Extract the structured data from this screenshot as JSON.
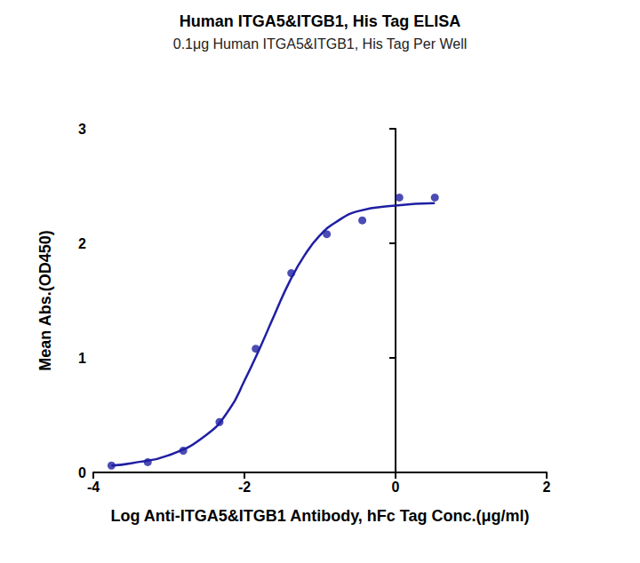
{
  "chart_data": {
    "type": "scatter",
    "title": "Human ITGA5&ITGB1, His Tag ELISA",
    "subtitle": "0.1μg Human ITGA5&ITGB1, His Tag Per Well",
    "x_label": "Log Anti-ITGA5&ITGB1 Antibody, hFc Tag Conc.(μg/ml)",
    "y_label": "Mean Abs.(OD450)",
    "xlim": [
      -4,
      2
    ],
    "xticks": [
      -4,
      -2,
      0,
      2
    ],
    "ylim": [
      0,
      3
    ],
    "yticks": [
      0,
      1,
      2,
      3
    ],
    "grid": false,
    "series": [
      {
        "type": "scatter",
        "color": "#1f1fa3",
        "marker": "circle",
        "x": [
          -3.76,
          -3.28,
          -2.81,
          -2.33,
          -1.85,
          -1.38,
          -0.91,
          -0.44,
          0.05,
          0.52
        ],
        "values": [
          0.06,
          0.09,
          0.19,
          0.44,
          1.08,
          1.74,
          2.08,
          2.2,
          2.4,
          2.4
        ]
      },
      {
        "type": "line",
        "color": "#1f1fa3",
        "marker": "none",
        "line_style": "solid",
        "x": [
          -3.76,
          -3.5,
          -3.0,
          -2.5,
          -2.2,
          -2.0,
          -1.8,
          -1.6,
          -1.4,
          -1.2,
          -1.0,
          -0.8,
          -0.5,
          0.0,
          0.52
        ],
        "values": [
          0.06,
          0.08,
          0.15,
          0.33,
          0.55,
          0.8,
          1.08,
          1.38,
          1.67,
          1.9,
          2.07,
          2.18,
          2.28,
          2.33,
          2.35
        ]
      }
    ]
  }
}
